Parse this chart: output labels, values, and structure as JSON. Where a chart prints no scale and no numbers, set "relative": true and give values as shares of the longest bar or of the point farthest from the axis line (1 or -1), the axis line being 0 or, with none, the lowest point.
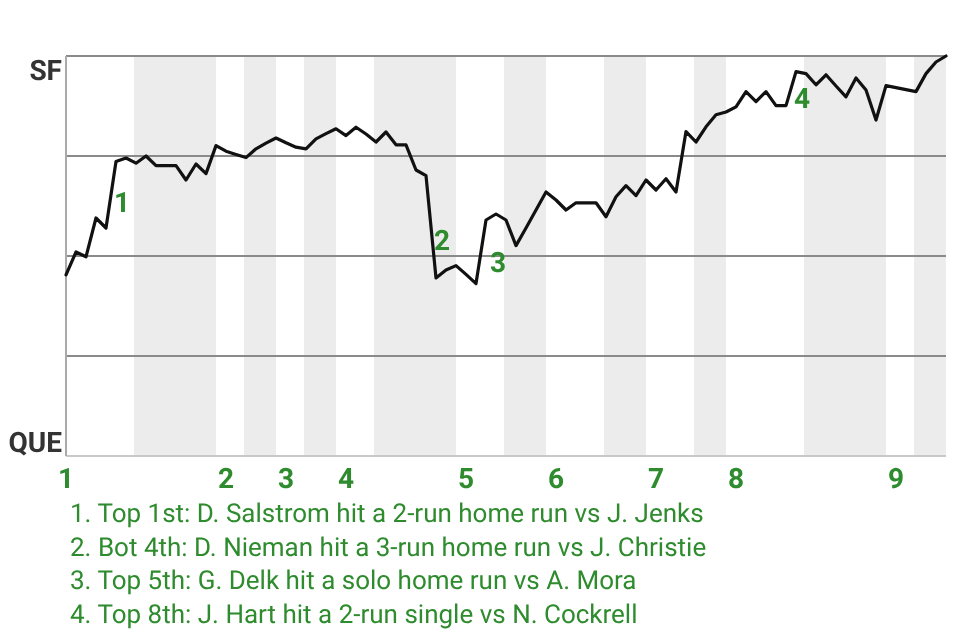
{
  "chart_data": {
    "type": "line",
    "relative": true,
    "categories": [
      "1",
      null,
      null,
      null,
      null,
      null,
      null,
      null,
      null,
      null,
      null,
      null,
      null,
      null,
      null,
      null,
      "2",
      null,
      null,
      null,
      null,
      null,
      "3",
      null,
      null,
      null,
      null,
      null,
      "4",
      null,
      null,
      null,
      null,
      null,
      null,
      null,
      null,
      null,
      null,
      null,
      "5",
      null,
      null,
      null,
      null,
      null,
      null,
      null,
      null,
      "6",
      null,
      null,
      null,
      null,
      null,
      null,
      null,
      null,
      null,
      "7",
      null,
      null,
      null,
      null,
      null,
      null,
      null,
      "8",
      null,
      null,
      null,
      null,
      null,
      null,
      null,
      null,
      null,
      null,
      null,
      null,
      null,
      null,
      null,
      "9",
      null,
      null,
      null,
      null,
      null
    ],
    "series": [
      {
        "color": "#111111",
        "values": [
          0.453,
          0.51,
          0.498,
          0.595,
          0.57,
          0.736,
          0.745,
          0.732,
          0.75,
          0.726,
          0.726,
          0.726,
          0.69,
          0.73,
          0.706,
          0.776,
          0.762,
          0.754,
          0.746,
          0.768,
          0.782,
          0.795,
          0.783,
          0.772,
          0.768,
          0.793,
          0.806,
          0.818,
          0.801,
          0.822,
          0.805,
          0.785,
          0.81,
          0.778,
          0.778,
          0.715,
          0.701,
          0.445,
          0.465,
          0.476,
          0.454,
          0.431,
          0.59,
          0.605,
          0.59,
          0.526,
          0.57,
          0.615,
          0.66,
          0.64,
          0.615,
          0.633,
          0.633,
          0.633,
          0.598,
          0.648,
          0.676,
          0.651,
          0.69,
          0.665,
          0.693,
          0.66,
          0.811,
          0.785,
          0.823,
          0.853,
          0.86,
          0.873,
          0.911,
          0.886,
          0.911,
          0.876,
          0.876,
          0.961,
          0.956,
          0.928,
          0.953,
          0.925,
          0.898,
          0.945,
          0.915,
          0.84,
          0.926,
          0.921,
          0.916,
          0.911,
          0.956,
          0.985,
          1
        ]
      }
    ],
    "grid": "y",
    "marker": "none",
    "line_style": "solid",
    "annotations": [
      "SF",
      "QUE",
      "1",
      "2",
      "3",
      "4",
      "1. Top 1st: D. Salstrom hit a 2-run home run vs J. Jenks",
      "2. Bot 4th: D. Nieman hit a 3-run home run vs J. Christie",
      "3. Top 5th: G. Delk hit a solo home run vs A. Mora",
      "4. Top 8th: J. Hart hit a 2-run single vs N. Cockrell"
    ]
  }
}
